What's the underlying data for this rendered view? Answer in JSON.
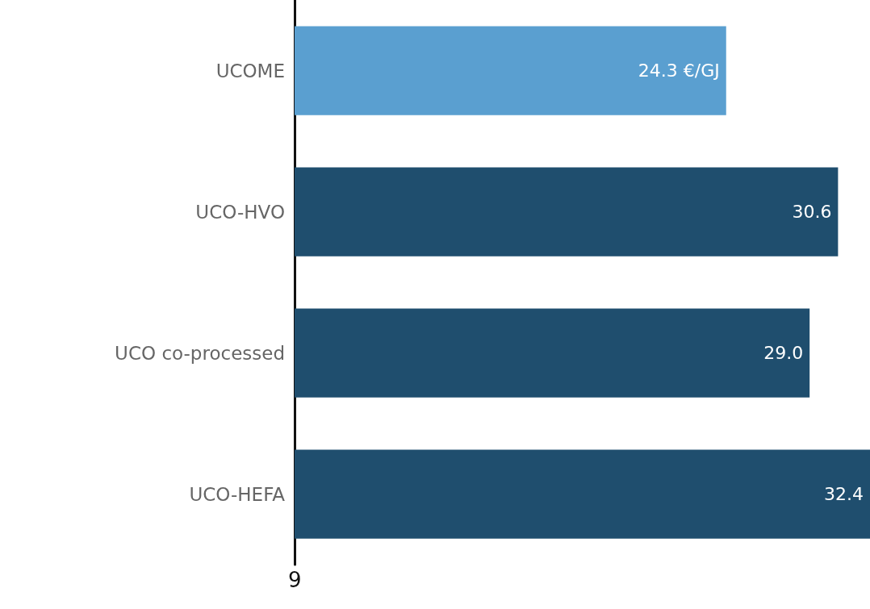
{
  "chart_data": {
    "type": "bar",
    "orientation": "horizontal",
    "categories": [
      "UCOME",
      "UCO-HVO",
      "UCO co-processed",
      "UCO-HEFA"
    ],
    "values": [
      24.3,
      30.6,
      29.0,
      32.4
    ],
    "colors": [
      "#5a9fd0",
      "#1f4e6e",
      "#1f4e6e",
      "#1f4e6e"
    ],
    "value_labels": [
      "24.3 €/GJ",
      "30.6",
      "29.0",
      "32.4"
    ],
    "xlim": [
      0,
      32.4
    ],
    "annotations": [
      "9"
    ]
  }
}
